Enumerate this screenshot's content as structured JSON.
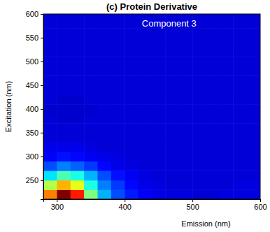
{
  "chart_data": {
    "type": "heatmap",
    "title": "(c) Protein Derivative",
    "annotation": "Component 3",
    "x_label": "Emission (nm)",
    "y_label": "Excitation (nm)",
    "xlim": [
      280,
      600
    ],
    "ylim": [
      210,
      600
    ],
    "xticks": [
      300,
      400,
      500,
      600
    ],
    "yticks": [
      250,
      300,
      350,
      400,
      450,
      500,
      550,
      600
    ],
    "x": [
      290,
      310,
      330,
      350,
      370,
      390,
      410,
      430,
      450,
      470,
      490,
      510,
      530,
      550,
      570,
      590
    ],
    "y": [
      220,
      240,
      260,
      280,
      300,
      320,
      340,
      360,
      380,
      400,
      420,
      440,
      460,
      480,
      500,
      520,
      540,
      560,
      580,
      600
    ],
    "z": [
      [
        0.75,
        1.0,
        0.85,
        0.5,
        0.3,
        0.2,
        0.15,
        0.12,
        0.1,
        0.09,
        0.09,
        0.08,
        0.08,
        0.09,
        0.09,
        0.09
      ],
      [
        0.55,
        0.7,
        0.6,
        0.4,
        0.25,
        0.18,
        0.13,
        0.1,
        0.09,
        0.08,
        0.08,
        0.08,
        0.08,
        0.08,
        0.09,
        0.09
      ],
      [
        0.35,
        0.45,
        0.4,
        0.3,
        0.2,
        0.14,
        0.11,
        0.09,
        0.08,
        0.08,
        0.08,
        0.08,
        0.08,
        0.08,
        0.08,
        0.08
      ],
      [
        0.2,
        0.25,
        0.22,
        0.18,
        0.13,
        0.1,
        0.09,
        0.08,
        0.08,
        0.08,
        0.08,
        0.08,
        0.08,
        0.08,
        0.08,
        0.08
      ],
      [
        0.12,
        0.14,
        0.13,
        0.11,
        0.1,
        0.09,
        0.08,
        0.08,
        0.08,
        0.08,
        0.08,
        0.08,
        0.08,
        0.08,
        0.08,
        0.08
      ],
      [
        0.1,
        0.1,
        0.1,
        0.09,
        0.08,
        0.08,
        0.08,
        0.08,
        0.08,
        0.08,
        0.08,
        0.08,
        0.08,
        0.08,
        0.08,
        0.08
      ],
      [
        0.08,
        0.08,
        0.08,
        0.08,
        0.08,
        0.08,
        0.08,
        0.08,
        0.08,
        0.08,
        0.08,
        0.08,
        0.08,
        0.08,
        0.08,
        0.08
      ],
      [
        0.08,
        0.08,
        0.08,
        0.08,
        0.08,
        0.08,
        0.08,
        0.08,
        0.08,
        0.08,
        0.08,
        0.08,
        0.08,
        0.08,
        0.08,
        0.08
      ],
      [
        0.08,
        0.07,
        0.07,
        0.08,
        0.08,
        0.08,
        0.08,
        0.08,
        0.08,
        0.08,
        0.08,
        0.08,
        0.08,
        0.08,
        0.08,
        0.08
      ],
      [
        0.07,
        0.07,
        0.07,
        0.07,
        0.08,
        0.08,
        0.08,
        0.08,
        0.08,
        0.08,
        0.08,
        0.08,
        0.08,
        0.08,
        0.08,
        0.08
      ],
      [
        0.08,
        0.07,
        0.07,
        0.08,
        0.08,
        0.08,
        0.08,
        0.08,
        0.08,
        0.08,
        0.08,
        0.08,
        0.08,
        0.08,
        0.08,
        0.08
      ],
      [
        0.08,
        0.08,
        0.08,
        0.08,
        0.08,
        0.08,
        0.08,
        0.08,
        0.08,
        0.08,
        0.08,
        0.08,
        0.08,
        0.08,
        0.08,
        0.08
      ],
      [
        0.08,
        0.08,
        0.08,
        0.08,
        0.08,
        0.08,
        0.08,
        0.08,
        0.08,
        0.08,
        0.08,
        0.08,
        0.08,
        0.08,
        0.08,
        0.08
      ],
      [
        0.08,
        0.08,
        0.08,
        0.08,
        0.08,
        0.08,
        0.08,
        0.08,
        0.08,
        0.08,
        0.08,
        0.08,
        0.08,
        0.08,
        0.08,
        0.08
      ],
      [
        0.08,
        0.08,
        0.08,
        0.08,
        0.08,
        0.08,
        0.08,
        0.08,
        0.08,
        0.08,
        0.08,
        0.08,
        0.08,
        0.08,
        0.08,
        0.08
      ],
      [
        0.08,
        0.08,
        0.08,
        0.08,
        0.08,
        0.08,
        0.08,
        0.08,
        0.08,
        0.08,
        0.08,
        0.08,
        0.08,
        0.08,
        0.08,
        0.08
      ],
      [
        0.08,
        0.08,
        0.08,
        0.08,
        0.08,
        0.08,
        0.08,
        0.08,
        0.08,
        0.08,
        0.08,
        0.08,
        0.08,
        0.08,
        0.08,
        0.08
      ],
      [
        0.08,
        0.08,
        0.08,
        0.08,
        0.08,
        0.08,
        0.08,
        0.08,
        0.08,
        0.08,
        0.08,
        0.08,
        0.08,
        0.08,
        0.08,
        0.08
      ],
      [
        0.08,
        0.08,
        0.08,
        0.08,
        0.08,
        0.08,
        0.08,
        0.08,
        0.08,
        0.08,
        0.08,
        0.08,
        0.08,
        0.08,
        0.08,
        0.08
      ],
      [
        0.08,
        0.08,
        0.08,
        0.08,
        0.08,
        0.08,
        0.08,
        0.08,
        0.08,
        0.08,
        0.08,
        0.08,
        0.08,
        0.08,
        0.08,
        0.08
      ]
    ]
  }
}
